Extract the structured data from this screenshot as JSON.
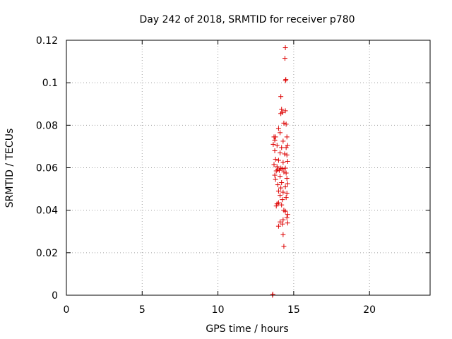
{
  "chart_data": {
    "type": "scatter",
    "title": "Day 242 of 2018, SRMTID for receiver p780",
    "xlabel": "GPS time / hours",
    "ylabel": "SRMTID / TECUs",
    "xlim": [
      0,
      24
    ],
    "ylim": [
      0,
      0.12
    ],
    "xticks": [
      0,
      5,
      10,
      15,
      20
    ],
    "xtick_labels": [
      "0",
      "5",
      "10",
      "15",
      "20"
    ],
    "yticks": [
      0,
      0.02,
      0.04,
      0.06,
      0.08,
      0.1,
      0.12
    ],
    "ytick_labels": [
      "0",
      "0.02",
      "0.04",
      "0.06",
      "0.08",
      "0.1",
      "0.12"
    ],
    "grid": true,
    "marker": "+",
    "color": "#dd0000",
    "series": [
      {
        "name": "SRMTID",
        "points": [
          [
            14.45,
            0.1165
          ],
          [
            14.42,
            0.1115
          ],
          [
            14.48,
            0.1015
          ],
          [
            14.46,
            0.101
          ],
          [
            14.15,
            0.0935
          ],
          [
            14.2,
            0.0875
          ],
          [
            14.25,
            0.086
          ],
          [
            14.45,
            0.0868
          ],
          [
            14.15,
            0.0855
          ],
          [
            14.35,
            0.081
          ],
          [
            14.5,
            0.0805
          ],
          [
            14.0,
            0.0785
          ],
          [
            14.1,
            0.0765
          ],
          [
            13.7,
            0.0745
          ],
          [
            13.75,
            0.073
          ],
          [
            13.8,
            0.0745
          ],
          [
            14.3,
            0.0725
          ],
          [
            14.55,
            0.0745
          ],
          [
            13.65,
            0.071
          ],
          [
            13.9,
            0.0705
          ],
          [
            14.2,
            0.0695
          ],
          [
            14.5,
            0.0695
          ],
          [
            14.6,
            0.0705
          ],
          [
            13.75,
            0.068
          ],
          [
            14.1,
            0.067
          ],
          [
            14.4,
            0.0665
          ],
          [
            14.55,
            0.066
          ],
          [
            13.8,
            0.064
          ],
          [
            14.0,
            0.0635
          ],
          [
            14.3,
            0.0625
          ],
          [
            14.6,
            0.063
          ],
          [
            13.7,
            0.0615
          ],
          [
            13.9,
            0.0605
          ],
          [
            14.15,
            0.0598
          ],
          [
            14.25,
            0.0595
          ],
          [
            14.45,
            0.0598
          ],
          [
            13.85,
            0.0585
          ],
          [
            13.95,
            0.059
          ],
          [
            14.05,
            0.0588
          ],
          [
            14.35,
            0.058
          ],
          [
            14.5,
            0.0575
          ],
          [
            13.75,
            0.0565
          ],
          [
            14.1,
            0.056
          ],
          [
            14.55,
            0.055
          ],
          [
            13.8,
            0.0545
          ],
          [
            14.2,
            0.053
          ],
          [
            14.6,
            0.0525
          ],
          [
            13.95,
            0.052
          ],
          [
            14.15,
            0.0505
          ],
          [
            14.45,
            0.051
          ],
          [
            14.0,
            0.049
          ],
          [
            14.3,
            0.0485
          ],
          [
            14.55,
            0.048
          ],
          [
            14.1,
            0.047
          ],
          [
            14.5,
            0.046
          ],
          [
            14.25,
            0.045
          ],
          [
            13.9,
            0.043
          ],
          [
            13.85,
            0.042
          ],
          [
            14.0,
            0.0435
          ],
          [
            14.2,
            0.0425
          ],
          [
            14.35,
            0.04
          ],
          [
            14.45,
            0.0395
          ],
          [
            14.6,
            0.038
          ],
          [
            14.55,
            0.0365
          ],
          [
            14.3,
            0.0355
          ],
          [
            14.1,
            0.0345
          ],
          [
            14.25,
            0.0335
          ],
          [
            14.0,
            0.0325
          ],
          [
            14.6,
            0.034
          ],
          [
            14.3,
            0.0285
          ],
          [
            14.35,
            0.023
          ],
          [
            13.6,
            0.0
          ],
          [
            13.62,
            0.0005
          ]
        ]
      }
    ]
  }
}
